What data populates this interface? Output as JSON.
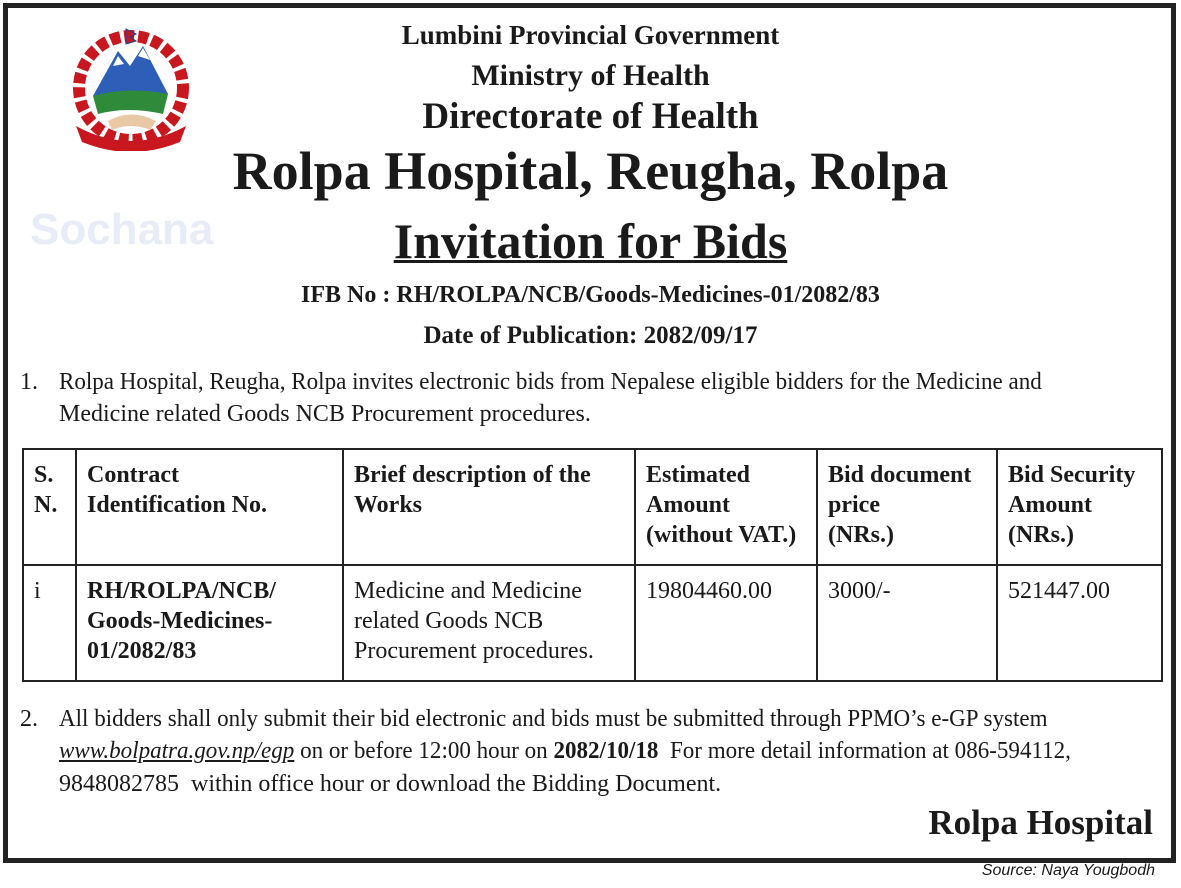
{
  "header": {
    "line1": "Lumbini Provincial Government",
    "line2": "Ministry of Health",
    "line3": "Directorate of Health",
    "office": "Rolpa Hospital, Reugha, Rolpa",
    "title": "Invitation for Bids",
    "ifb": "IFB No : RH/ROLPA/NCB/Goods-Medicines-01/2082/83",
    "date": "Date of Publication: 2082/09/17"
  },
  "para1": {
    "num": "1.",
    "line1": "Rolpa Hospital, Reugha, Rolpa invites electronic bids from Nepalese eligible bidders for the Medicine and",
    "line2": "Medicine related Goods NCB Procurement  procedures."
  },
  "table": {
    "headers": [
      [
        "S.",
        "N."
      ],
      [
        "Contract",
        "Identification  No."
      ],
      [
        "Brief description of the",
        "Works"
      ],
      [
        "Estimated",
        "Amount",
        "(without VAT.)"
      ],
      [
        "Bid document",
        "price",
        "(NRs.)"
      ],
      [
        " Bid Security",
        "Amount",
        "(NRs.)"
      ]
    ],
    "rows": [
      {
        "sn": "i",
        "contract": [
          "RH/ROLPA/NCB/",
          "Goods-Medicines-",
          "01/2082/83"
        ],
        "description": [
          "Medicine and Medicine",
          "related Goods NCB",
          "Procurement  procedures."
        ],
        "estimated": "19804460.00",
        "doc_price": "3000/-",
        "security": "521447.00"
      }
    ]
  },
  "para2": {
    "num": "2.",
    "line1": "All bidders shall only submit their bid electronic and bids must be submitted through PPMO’s e-GP system",
    "link": "www.bolpatra.gov.np/egp",
    "mid": " on or before 12:00 hour on ",
    "deadline": "2082/10/18",
    "tail": "  For more detail information at 086-594112,",
    "line3": "9848082785  within office hour or download the Bidding Document."
  },
  "signature": "Rolpa Hospital",
  "source": "Source: Naya Yougbodh",
  "watermark": "Sochana",
  "emblem": "Government of Nepal emblem"
}
